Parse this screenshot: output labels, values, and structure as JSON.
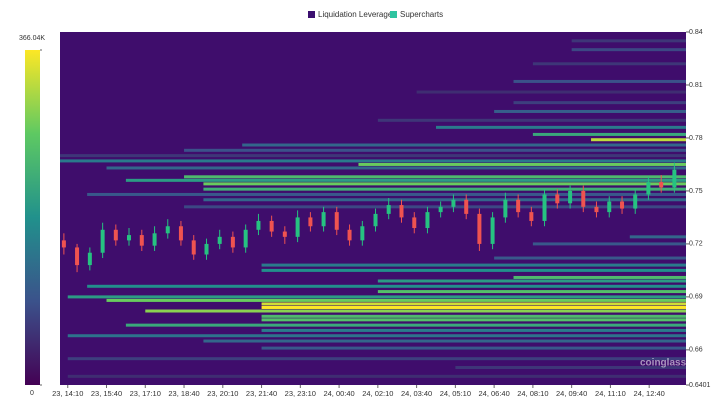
{
  "chart_data": {
    "type": "heatmap",
    "legend": [
      {
        "name": "Liquidation Leverage",
        "color": "#3b0f6f"
      },
      {
        "name": "Supercharts",
        "color": "#2ec4a0"
      }
    ],
    "watermark": "coinglass",
    "xlim": [
      -0.2,
      15.95
    ],
    "xticks": [
      {
        "value": 0,
        "label": "23, 14:10"
      },
      {
        "value": 1,
        "label": "23, 15:40"
      },
      {
        "value": 2,
        "label": "23, 17:10"
      },
      {
        "value": 3,
        "label": "23, 18:40"
      },
      {
        "value": 4,
        "label": "23, 20:10"
      },
      {
        "value": 5,
        "label": "23, 21:40"
      },
      {
        "value": 6,
        "label": "23, 23:10"
      },
      {
        "value": 7,
        "label": "24, 00:40"
      },
      {
        "value": 8,
        "label": "24, 02:10"
      },
      {
        "value": 9,
        "label": "24, 03:40"
      },
      {
        "value": 10,
        "label": "24, 05:10"
      },
      {
        "value": 11,
        "label": "24, 06:40"
      },
      {
        "value": 12,
        "label": "24, 08:10"
      },
      {
        "value": 13,
        "label": "24, 09:40"
      },
      {
        "value": 14,
        "label": "24, 11:10"
      },
      {
        "value": 15,
        "label": "24, 12:40"
      }
    ],
    "ylim": [
      0.6401,
      0.84
    ],
    "yticks": [
      0.84,
      0.81,
      0.78,
      0.75,
      0.72,
      0.69,
      0.66,
      {
        "value": 0.6401,
        "label": "0.6401"
      }
    ],
    "zlim": [
      0,
      366.04
    ],
    "zticks": [
      {
        "value": 366.04,
        "label": "366.04K"
      },
      0
    ],
    "up_color": "#26c281",
    "down_color": "#ef5350",
    "background": "#3f0d6c",
    "heatmap": [
      [
        0.835,
        13,
        60
      ],
      [
        0.83,
        13,
        80
      ],
      [
        0.822,
        12,
        60
      ],
      [
        0.812,
        11.5,
        90
      ],
      [
        0.806,
        9,
        50
      ],
      [
        0.8,
        11.5,
        70
      ],
      [
        0.795,
        11,
        110
      ],
      [
        0.79,
        8,
        60
      ],
      [
        0.786,
        9.5,
        150
      ],
      [
        0.782,
        12,
        220
      ],
      [
        0.779,
        13.5,
        330
      ],
      [
        0.776,
        4.5,
        120
      ],
      [
        0.773,
        3,
        90
      ],
      [
        0.77,
        -0.2,
        60
      ],
      [
        0.767,
        -0.2,
        150
      ],
      [
        0.765,
        7.5,
        280
      ],
      [
        0.763,
        1,
        120
      ],
      [
        0.758,
        3,
        250
      ],
      [
        0.756,
        1.5,
        200
      ],
      [
        0.754,
        3.5,
        280
      ],
      [
        0.751,
        3.5,
        230
      ],
      [
        0.748,
        0.5,
        100
      ],
      [
        0.745,
        3.5,
        120
      ],
      [
        0.741,
        3,
        80
      ],
      [
        0.724,
        14.5,
        120
      ],
      [
        0.72,
        12,
        100
      ],
      [
        0.712,
        11,
        100
      ],
      [
        0.708,
        5,
        150
      ],
      [
        0.705,
        5,
        180
      ],
      [
        0.701,
        11.5,
        250
      ],
      [
        0.699,
        8,
        200
      ],
      [
        0.696,
        0.5,
        180
      ],
      [
        0.693,
        8,
        260
      ],
      [
        0.69,
        0,
        200
      ],
      [
        0.688,
        1,
        280
      ],
      [
        0.686,
        5,
        340
      ],
      [
        0.684,
        5,
        366.04
      ],
      [
        0.682,
        2,
        300
      ],
      [
        0.679,
        5,
        250
      ],
      [
        0.677,
        5,
        260
      ],
      [
        0.674,
        1.5,
        220
      ],
      [
        0.671,
        5,
        150
      ],
      [
        0.668,
        0,
        140
      ],
      [
        0.665,
        3.5,
        120
      ],
      [
        0.661,
        5,
        100
      ],
      [
        0.655,
        0,
        70
      ],
      [
        0.65,
        10,
        60
      ],
      [
        0.645,
        0,
        50
      ]
    ],
    "candle_x": [
      -0.1,
      0.24,
      0.57,
      0.9,
      1.24,
      1.58,
      1.91,
      2.24,
      2.58,
      2.92,
      3.25,
      3.58,
      3.92,
      4.26,
      4.59,
      4.92,
      5.26,
      5.6,
      5.93,
      6.26,
      6.6,
      6.94,
      7.27,
      7.6,
      7.94,
      8.28,
      8.61,
      8.94,
      9.28,
      9.62,
      9.95,
      10.28,
      10.62,
      10.96,
      11.29,
      11.62,
      11.96,
      12.3,
      12.63,
      12.96,
      13.3,
      13.64,
      13.97,
      14.3,
      14.64,
      14.98,
      15.31,
      15.65
    ],
    "candles": [
      [
        0.722,
        0.726,
        0.714,
        0.718
      ],
      [
        0.718,
        0.72,
        0.704,
        0.708
      ],
      [
        0.708,
        0.718,
        0.705,
        0.715
      ],
      [
        0.715,
        0.732,
        0.712,
        0.728
      ],
      [
        0.728,
        0.731,
        0.719,
        0.722
      ],
      [
        0.722,
        0.729,
        0.719,
        0.725
      ],
      [
        0.725,
        0.728,
        0.716,
        0.719
      ],
      [
        0.719,
        0.73,
        0.716,
        0.726
      ],
      [
        0.726,
        0.734,
        0.723,
        0.73
      ],
      [
        0.73,
        0.733,
        0.719,
        0.722
      ],
      [
        0.722,
        0.725,
        0.711,
        0.714
      ],
      [
        0.714,
        0.723,
        0.711,
        0.72
      ],
      [
        0.72,
        0.728,
        0.717,
        0.724
      ],
      [
        0.724,
        0.727,
        0.715,
        0.718
      ],
      [
        0.718,
        0.731,
        0.715,
        0.728
      ],
      [
        0.728,
        0.737,
        0.725,
        0.733
      ],
      [
        0.733,
        0.736,
        0.724,
        0.727
      ],
      [
        0.727,
        0.73,
        0.72,
        0.724
      ],
      [
        0.724,
        0.739,
        0.721,
        0.735
      ],
      [
        0.735,
        0.738,
        0.727,
        0.73
      ],
      [
        0.73,
        0.741,
        0.727,
        0.738
      ],
      [
        0.738,
        0.741,
        0.725,
        0.728
      ],
      [
        0.728,
        0.731,
        0.719,
        0.722
      ],
      [
        0.722,
        0.733,
        0.719,
        0.73
      ],
      [
        0.73,
        0.74,
        0.727,
        0.737
      ],
      [
        0.737,
        0.746,
        0.734,
        0.742
      ],
      [
        0.742,
        0.745,
        0.732,
        0.735
      ],
      [
        0.735,
        0.738,
        0.726,
        0.729
      ],
      [
        0.729,
        0.741,
        0.726,
        0.738
      ],
      [
        0.738,
        0.744,
        0.735,
        0.741
      ],
      [
        0.741,
        0.748,
        0.738,
        0.745
      ],
      [
        0.745,
        0.748,
        0.734,
        0.737
      ],
      [
        0.737,
        0.74,
        0.716,
        0.72
      ],
      [
        0.72,
        0.738,
        0.717,
        0.735
      ],
      [
        0.735,
        0.749,
        0.732,
        0.745
      ],
      [
        0.745,
        0.748,
        0.735,
        0.738
      ],
      [
        0.738,
        0.741,
        0.73,
        0.733
      ],
      [
        0.733,
        0.751,
        0.73,
        0.748
      ],
      [
        0.748,
        0.751,
        0.74,
        0.743
      ],
      [
        0.743,
        0.753,
        0.74,
        0.75
      ],
      [
        0.75,
        0.753,
        0.738,
        0.741
      ],
      [
        0.741,
        0.744,
        0.735,
        0.738
      ],
      [
        0.738,
        0.747,
        0.735,
        0.744
      ],
      [
        0.744,
        0.747,
        0.737,
        0.74
      ],
      [
        0.74,
        0.751,
        0.737,
        0.748
      ],
      [
        0.748,
        0.758,
        0.745,
        0.755
      ],
      [
        0.755,
        0.759,
        0.749,
        0.752
      ],
      [
        0.752,
        0.766,
        0.749,
        0.762
      ]
    ]
  }
}
